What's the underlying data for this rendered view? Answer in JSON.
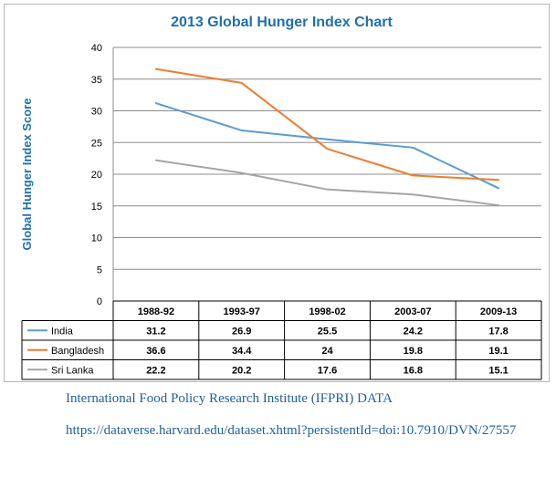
{
  "chart_data": {
    "type": "line",
    "title": "2013 Global Hunger Index Chart",
    "xlabel": "",
    "ylabel": "Global Hunger Index Score",
    "ylim": [
      0,
      40
    ],
    "yticks": [
      0,
      5,
      10,
      15,
      20,
      25,
      30,
      35,
      40
    ],
    "categories": [
      "1988-92",
      "1993-97",
      "1998-02",
      "2003-07",
      "2009-13"
    ],
    "grid": "horizontal",
    "legend": "data-table",
    "series": [
      {
        "name": "India",
        "color": "#5b9bd5",
        "values": [
          31.2,
          26.9,
          25.5,
          24.2,
          17.8
        ],
        "labels": [
          "31.2",
          "26.9",
          "25.5",
          "24.2",
          "17.8"
        ]
      },
      {
        "name": "Bangladesh",
        "color": "#ed7d31",
        "values": [
          36.6,
          34.4,
          24,
          19.8,
          19.1
        ],
        "labels": [
          "36.6",
          "34.4",
          "24",
          "19.8",
          "19.1"
        ]
      },
      {
        "name": "Sri Lanka",
        "color": "#a5a5a5",
        "values": [
          22.2,
          20.2,
          17.6,
          16.8,
          15.1
        ],
        "labels": [
          "22.2",
          "20.2",
          "17.6",
          "16.8",
          "15.1"
        ]
      }
    ]
  },
  "source": {
    "title": "International Food Policy Research Institute (IFPRI) DATA",
    "url": "https://dataverse.harvard.edu/dataset.xhtml?persistentId=doi:10.7910/DVN/27557"
  }
}
